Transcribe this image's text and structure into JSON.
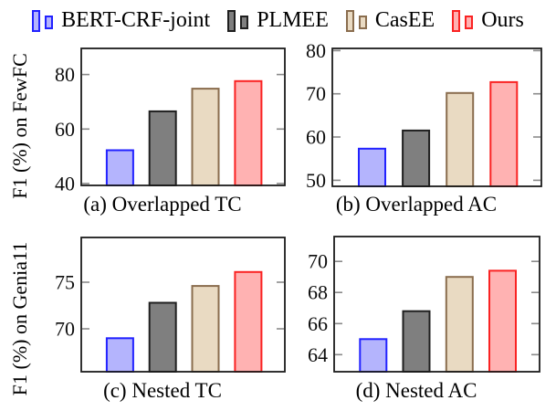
{
  "legend": {
    "items": [
      {
        "label": "BERT-CRF-joint",
        "fill": "#b4b4fd",
        "stroke": "#2222ff"
      },
      {
        "label": "PLMEE",
        "fill": "#7f7f7f",
        "stroke": "#1f1f1f"
      },
      {
        "label": "CasEE",
        "fill": "#e9dac2",
        "stroke": "#8a6d4e"
      },
      {
        "label": "Ours",
        "fill": "#ffb2b2",
        "stroke": "#fa2323"
      }
    ]
  },
  "row_labels": {
    "top": "F1 (%) on FewFC",
    "bottom": "F1 (%) on Genia11"
  },
  "axis_colors": {
    "frame": "#1c1c1c",
    "tick": "#8a8a8a",
    "text": "#0d0d0d"
  },
  "chart_data": [
    {
      "type": "bar",
      "caption": "(a) Overlapped TC",
      "ylabel": "F1 (%) on FewFC",
      "series": [
        "BERT-CRF-joint",
        "PLMEE",
        "CasEE",
        "Ours"
      ],
      "values": [
        52.2,
        66.5,
        74.8,
        77.6
      ],
      "yticks": [
        40,
        60,
        80
      ],
      "ylim": [
        39.3,
        89.6
      ],
      "grid": false,
      "legend_position": "top-shared"
    },
    {
      "type": "bar",
      "caption": "(b) Overlapped AC",
      "ylabel": "F1 (%) on FewFC",
      "series": [
        "BERT-CRF-joint",
        "PLMEE",
        "CasEE",
        "Ours"
      ],
      "values": [
        57.3,
        61.5,
        70.2,
        72.7
      ],
      "yticks": [
        50,
        60,
        70,
        80
      ],
      "ylim": [
        48.6,
        80.5
      ],
      "grid": false,
      "legend_position": "top-shared"
    },
    {
      "type": "bar",
      "caption": "(c) Nested TC",
      "ylabel": "F1 (%) on Genia11",
      "series": [
        "BERT-CRF-joint",
        "PLMEE",
        "CasEE",
        "Ours"
      ],
      "values": [
        69.0,
        72.8,
        74.6,
        76.1
      ],
      "yticks": [
        70,
        75
      ],
      "ylim": [
        65.4,
        79.8
      ],
      "grid": false,
      "legend_position": "top-shared"
    },
    {
      "type": "bar",
      "caption": "(d) Nested AC",
      "ylabel": "F1 (%) on Genia11",
      "series": [
        "BERT-CRF-joint",
        "PLMEE",
        "CasEE",
        "Ours"
      ],
      "values": [
        65.0,
        66.8,
        69.0,
        69.4
      ],
      "yticks": [
        64,
        66,
        68,
        70
      ],
      "ylim": [
        62.9,
        71.6
      ],
      "grid": false,
      "legend_position": "top-shared"
    }
  ]
}
